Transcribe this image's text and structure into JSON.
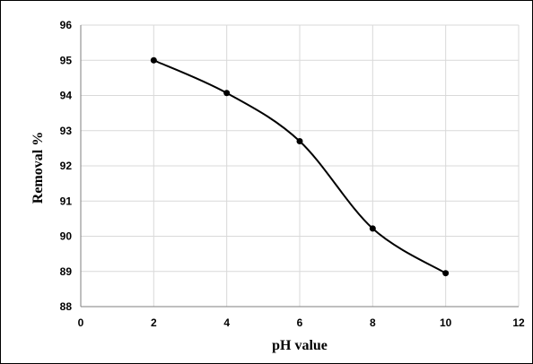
{
  "chart_data": {
    "type": "line",
    "title": "",
    "xlabel": "pH value",
    "ylabel": "Removal %",
    "xlim": [
      0,
      12
    ],
    "ylim": [
      88,
      96
    ],
    "x_ticks": [
      0,
      2,
      4,
      6,
      8,
      10,
      12
    ],
    "y_ticks": [
      88,
      89,
      90,
      91,
      92,
      93,
      94,
      95,
      96
    ],
    "grid": true,
    "smooth": true,
    "series": [
      {
        "x": [
          2,
          4,
          6,
          8,
          10
        ],
        "values": [
          95.0,
          94.07,
          92.7,
          90.22,
          88.95
        ],
        "color": "#000000"
      }
    ]
  }
}
